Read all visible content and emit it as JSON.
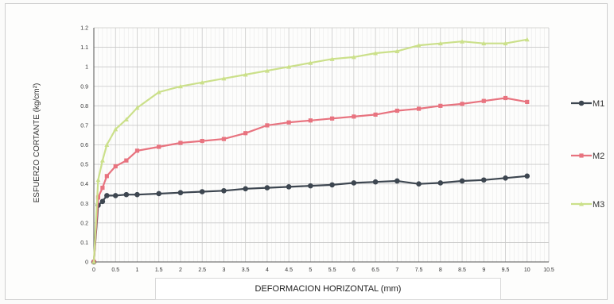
{
  "chart_data": {
    "type": "line",
    "title": "",
    "xlabel": "DEFORMACION HORIZONTAL (mm)",
    "ylabel": "ESFUERZO CORTANTE (kg/cm²)",
    "xlim": [
      0,
      10.5
    ],
    "ylim": [
      0,
      1.2
    ],
    "xticks": [
      "0",
      "0.5",
      "1",
      "1.5",
      "2",
      "2.5",
      "3",
      "3.5",
      "4",
      "4.5",
      "5",
      "5.5",
      "6",
      "6.5",
      "7",
      "7.5",
      "8",
      "8.5",
      "9",
      "9.5",
      "10",
      "10.5"
    ],
    "yticks": [
      "0",
      "0.1",
      "0.2",
      "0.3",
      "0.4",
      "0.5",
      "0.6",
      "0.7",
      "0.8",
      "0.9",
      "1",
      "1.1",
      "1.2"
    ],
    "grid": true,
    "legend": "right",
    "series": [
      {
        "name": "M1",
        "color": "#3d4650",
        "marker": "circle",
        "points": [
          [
            0,
            0
          ],
          [
            0.1,
            0.29
          ],
          [
            0.2,
            0.31
          ],
          [
            0.3,
            0.34
          ],
          [
            0.5,
            0.34
          ],
          [
            0.75,
            0.345
          ],
          [
            1,
            0.345
          ],
          [
            1.5,
            0.35
          ],
          [
            2,
            0.355
          ],
          [
            2.5,
            0.36
          ],
          [
            3,
            0.365
          ],
          [
            3.5,
            0.375
          ],
          [
            4,
            0.38
          ],
          [
            4.5,
            0.385
          ],
          [
            5,
            0.39
          ],
          [
            5.5,
            0.395
          ],
          [
            6,
            0.405
          ],
          [
            6.5,
            0.41
          ],
          [
            7,
            0.415
          ],
          [
            7.5,
            0.4
          ],
          [
            8,
            0.405
          ],
          [
            8.5,
            0.415
          ],
          [
            9,
            0.42
          ],
          [
            9.5,
            0.43
          ],
          [
            10,
            0.44
          ]
        ]
      },
      {
        "name": "M2",
        "color": "#e8737f",
        "marker": "square",
        "points": [
          [
            0,
            0
          ],
          [
            0.1,
            0.33
          ],
          [
            0.2,
            0.38
          ],
          [
            0.3,
            0.44
          ],
          [
            0.5,
            0.49
          ],
          [
            0.75,
            0.52
          ],
          [
            1,
            0.57
          ],
          [
            1.5,
            0.59
          ],
          [
            2,
            0.61
          ],
          [
            2.5,
            0.62
          ],
          [
            3,
            0.63
          ],
          [
            3.5,
            0.66
          ],
          [
            4,
            0.7
          ],
          [
            4.5,
            0.715
          ],
          [
            5,
            0.725
          ],
          [
            5.5,
            0.735
          ],
          [
            6,
            0.745
          ],
          [
            6.5,
            0.755
          ],
          [
            7,
            0.775
          ],
          [
            7.5,
            0.785
          ],
          [
            8,
            0.8
          ],
          [
            8.5,
            0.81
          ],
          [
            9,
            0.825
          ],
          [
            9.5,
            0.84
          ],
          [
            10,
            0.82
          ]
        ]
      },
      {
        "name": "M3",
        "color": "#cbe08a",
        "marker": "triangle",
        "points": [
          [
            0,
            0
          ],
          [
            0.1,
            0.42
          ],
          [
            0.2,
            0.52
          ],
          [
            0.3,
            0.6
          ],
          [
            0.5,
            0.68
          ],
          [
            0.75,
            0.73
          ],
          [
            1,
            0.79
          ],
          [
            1.5,
            0.87
          ],
          [
            2,
            0.9
          ],
          [
            2.5,
            0.92
          ],
          [
            3,
            0.94
          ],
          [
            3.5,
            0.96
          ],
          [
            4,
            0.98
          ],
          [
            4.5,
            1.0
          ],
          [
            5,
            1.02
          ],
          [
            5.5,
            1.04
          ],
          [
            6,
            1.05
          ],
          [
            6.5,
            1.07
          ],
          [
            7,
            1.08
          ],
          [
            7.5,
            1.11
          ],
          [
            8,
            1.12
          ],
          [
            8.5,
            1.13
          ],
          [
            9,
            1.12
          ],
          [
            9.5,
            1.12
          ],
          [
            10,
            1.14
          ]
        ]
      }
    ]
  }
}
